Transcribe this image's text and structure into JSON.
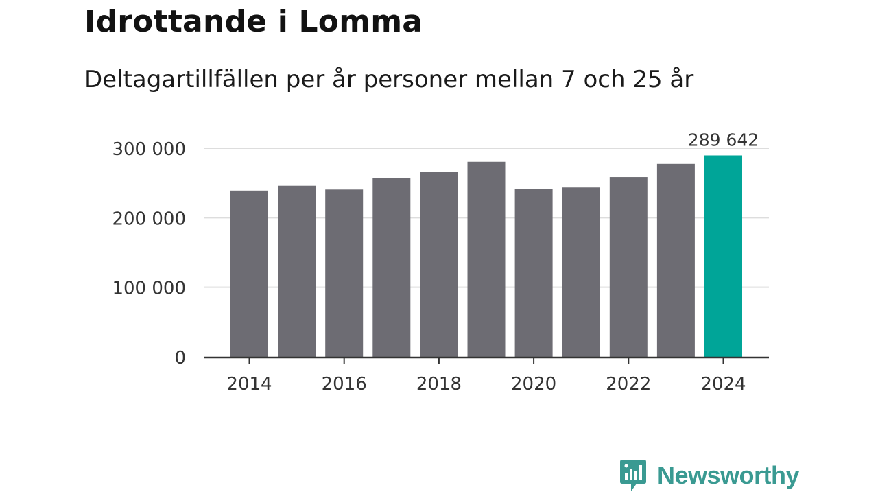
{
  "header": {
    "title": "Idrottande i Lomma",
    "subtitle": "Deltagartillfällen per år personer mellan 7 och 25 år"
  },
  "brand": {
    "name": "Newsworthy",
    "color": "#3a9a92",
    "logo_icon": "bar-chart-speech-bubble-icon"
  },
  "chart_data": {
    "type": "bar",
    "title": "Idrottande i Lomma",
    "subtitle": "Deltagartillfällen per år personer mellan 7 och 25 år",
    "xlabel": "",
    "ylabel": "",
    "categories": [
      "2014",
      "2015",
      "2016",
      "2017",
      "2018",
      "2019",
      "2020",
      "2021",
      "2022",
      "2023",
      "2024"
    ],
    "values": [
      239000,
      246000,
      240500,
      257500,
      265500,
      280500,
      241500,
      243500,
      258500,
      277500,
      289642
    ],
    "ylim": [
      0,
      300000
    ],
    "yticks": [
      "0",
      "100 000",
      "200 000",
      "300 000"
    ],
    "yticks_values": [
      0,
      100000,
      200000,
      300000
    ],
    "xticks": [
      "2014",
      "2016",
      "2018",
      "2020",
      "2022",
      "2024"
    ],
    "highlight_index": 10,
    "highlight_label": "289 642",
    "colors": {
      "bar": "#6d6c73",
      "highlight": "#00a598",
      "grid": "#dddddd",
      "axis": "#333333"
    },
    "grid": true
  }
}
